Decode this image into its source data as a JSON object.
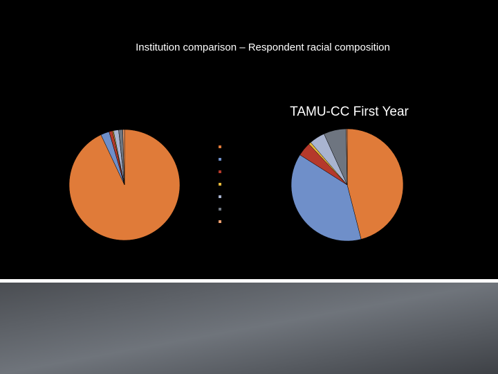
{
  "title": "Institution comparison –  Respondent racial composition",
  "chart_data": [
    {
      "type": "pie",
      "title": null,
      "categories": [
        null,
        null,
        null,
        null,
        null,
        null,
        null
      ],
      "values": [
        93,
        2.5,
        1,
        0.3,
        1.5,
        1.2,
        0.5
      ],
      "colors": [
        "#e07b39",
        "#6f8fc9",
        "#b5392b",
        "#e6b93a",
        "#a9b4d0",
        "#6e7580",
        "#f0a070"
      ],
      "legend": "right"
    },
    {
      "type": "pie",
      "title": "TAMU-CC First Year",
      "categories": [
        null,
        null,
        null,
        null,
        null,
        null,
        null
      ],
      "values": [
        46,
        38,
        4,
        0.7,
        4.5,
        6.5,
        0.3
      ],
      "colors": [
        "#e07b39",
        "#6f8fc9",
        "#b5392b",
        "#e6b93a",
        "#a9b4d0",
        "#6e7580",
        "#f0a070"
      ]
    }
  ]
}
